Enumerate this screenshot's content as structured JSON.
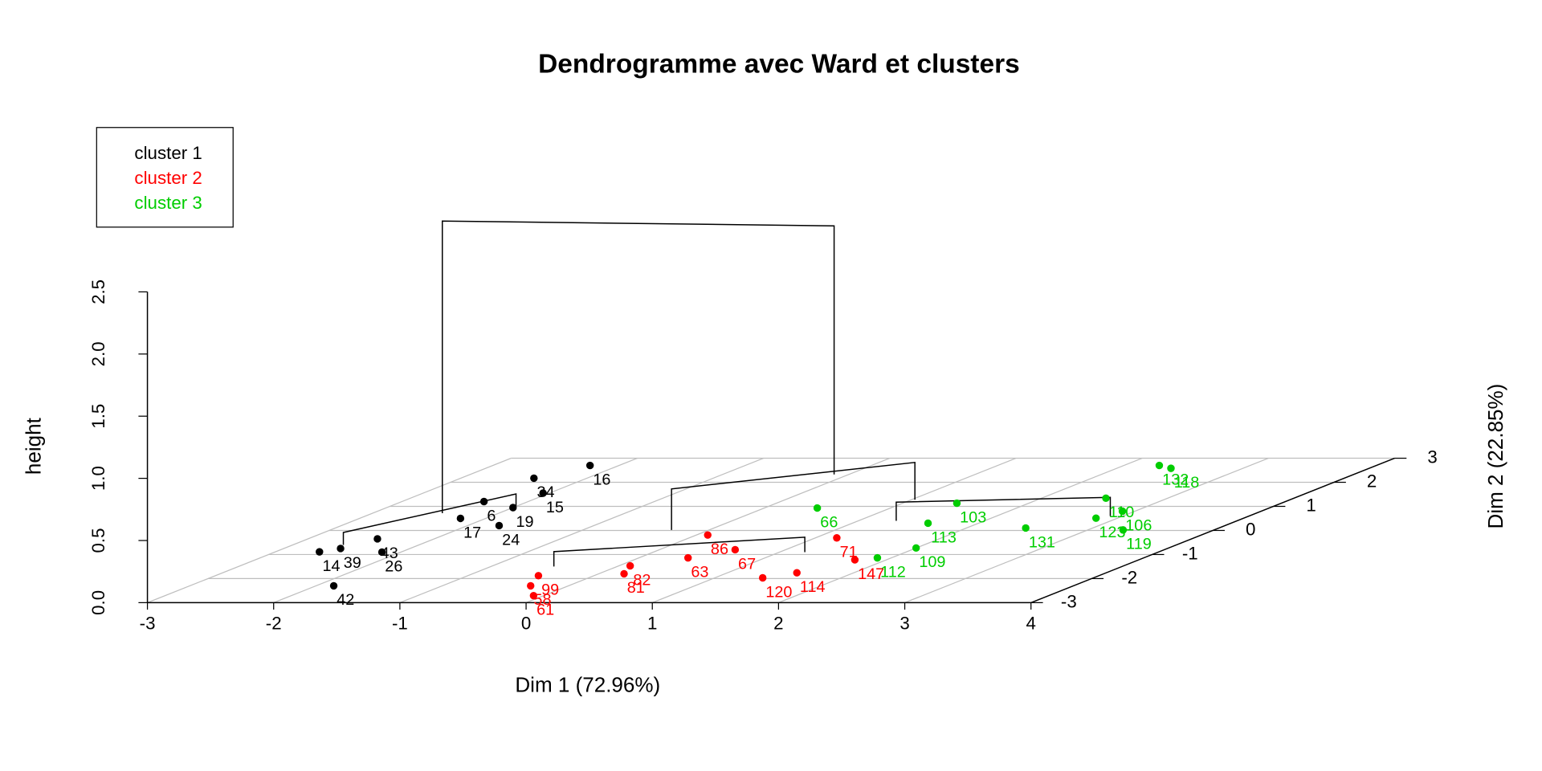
{
  "chart_data": {
    "type": "scatter3d",
    "title": "Dendrogramme avec Ward et clusters",
    "xlabel": "Dim 1 (72.96%)",
    "ylabel": "Dim 2 (22.85%)",
    "zlabel": "height",
    "xlim": [
      -3,
      4
    ],
    "ylim": [
      -3,
      3
    ],
    "zlim": [
      0,
      2.5
    ],
    "xticks": [
      -3,
      -2,
      -1,
      0,
      1,
      2,
      3,
      4
    ],
    "yticks": [
      -3,
      -2,
      -1,
      0,
      1,
      2,
      3
    ],
    "zticks": [
      {
        "value": 0,
        "label": "0.0"
      },
      0.5,
      {
        "value": 1,
        "label": "1.0"
      },
      1.5,
      {
        "value": 2,
        "label": "2.0"
      },
      2.5
    ],
    "grid": true,
    "legend": "top-left",
    "series": [
      {
        "name": "cluster 1",
        "color": "#000000",
        "x": [
          -2.23,
          -1.86,
          -2.65,
          -2.42,
          -2.05,
          -2.2,
          -2.0,
          -2.45,
          -2.55,
          -2.15,
          -1.75,
          -2.35
        ],
        "y": [
          2.7,
          -2.3,
          -0.89,
          2.17,
          1.55,
          0.5,
          0.95,
          -0.35,
          -0.75,
          -0.9,
          0.2,
          1.2
        ],
        "labels": [
          "16",
          "42",
          "14",
          "34",
          "15",
          "17",
          "19",
          "43",
          "39",
          "26",
          "24",
          "6"
        ]
      },
      {
        "name": "cluster 2",
        "color": "#ff0000",
        "x": [
          -0.44,
          -0.08,
          0.09,
          0.09,
          1.38,
          1.75,
          0.39,
          1.55,
          1.17,
          0.6,
          -0.3,
          0.2
        ],
        "y": [
          -1.88,
          -2.71,
          -1.47,
          -0.19,
          -1.97,
          -1.22,
          -1.14,
          -1.76,
          -0.31,
          -0.8,
          -2.3,
          -1.8
        ],
        "labels": [
          "99",
          "61",
          "82",
          "86",
          "120",
          "147",
          "63",
          "114",
          "71",
          "67",
          "58",
          "81"
        ]
      },
      {
        "name": "cluster 3",
        "color": "#00cd00",
        "x": [
          2.28,
          2.43,
          2.51,
          3.28,
          2.83,
          2.0,
          1.89,
          2.47,
          0.42,
          1.43,
          2.9,
          1.6
        ],
        "y": [
          2.7,
          2.58,
          1.34,
          0.02,
          0.51,
          -0.73,
          -1.14,
          0.1,
          0.93,
          1.13,
          0.8,
          0.3
        ],
        "labels": [
          "132",
          "118",
          "110",
          "119",
          "123",
          "109",
          "112",
          "131",
          "66",
          "103",
          "106",
          "113"
        ]
      }
    ],
    "links": [
      {
        "x": [
          -2.2,
          1.0
        ],
        "y": [
          0.2,
          0.0
        ],
        "height": 2.45,
        "bottom": [
          0.1,
          0.45
        ]
      },
      {
        "x": [
          0.0,
          1.4
        ],
        "y": [
          -0.6,
          0.5
        ],
        "height": 0.45,
        "bottom": [
          0.12,
          0.15
        ]
      },
      {
        "x": [
          -0.5,
          1.2
        ],
        "y": [
          -1.5,
          -0.9
        ],
        "height": 0.12,
        "bottom": [
          0,
          0
        ]
      },
      {
        "x": [
          1.3,
          2.9
        ],
        "y": [
          0.4,
          0.6
        ],
        "height": 0.15,
        "bottom": [
          0,
          0
        ]
      },
      {
        "x": [
          -2.6,
          -2.0
        ],
        "y": [
          -0.6,
          1.0
        ],
        "height": 0.1,
        "bottom": [
          0,
          0
        ]
      }
    ]
  }
}
